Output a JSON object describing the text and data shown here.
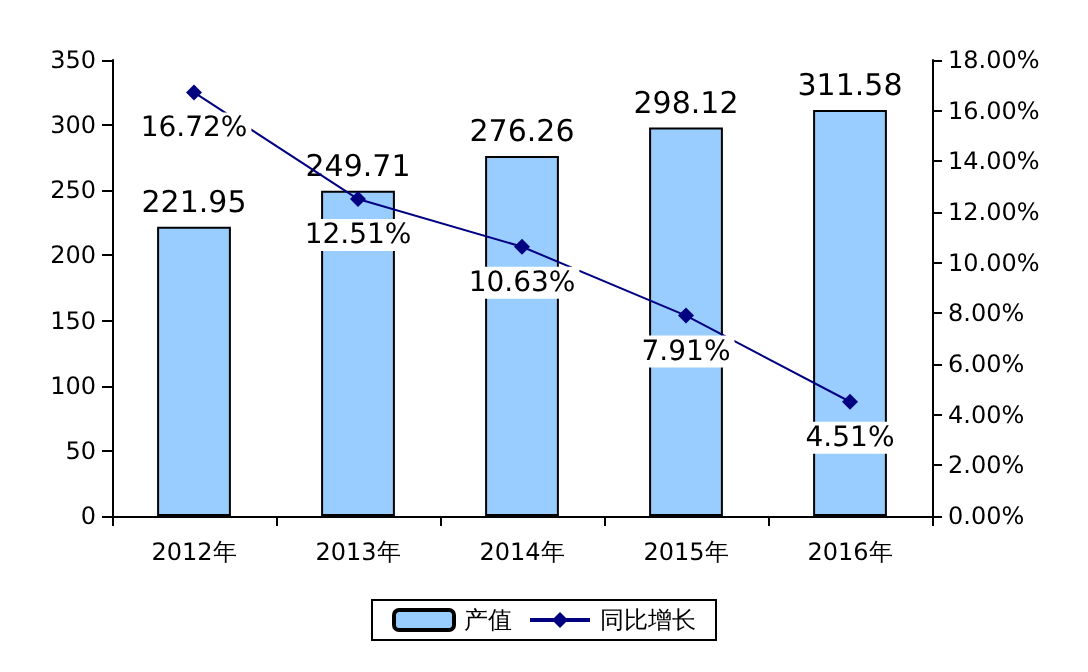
{
  "chart_data": {
    "type": "bar",
    "categories": [
      "2012年",
      "2013年",
      "2014年",
      "2015年",
      "2016年"
    ],
    "series": [
      {
        "name": "产值",
        "color": "#99ccff",
        "values": [
          221.95,
          249.71,
          276.26,
          298.12,
          311.58
        ]
      },
      {
        "name": "同比增长",
        "type": "line",
        "axis": "y2",
        "color": "#000080",
        "values": [
          16.72,
          12.51,
          10.63,
          7.91,
          4.51
        ],
        "value_labels": [
          "16.72%",
          "12.51%",
          "10.63%",
          "7.91%",
          "4.51%"
        ]
      }
    ],
    "data_labels": true,
    "ylim": [
      0,
      350
    ],
    "yticks": [
      0,
      50,
      100,
      150,
      200,
      250,
      300,
      350
    ],
    "y2lim": [
      0,
      18
    ],
    "y2ticks": [
      {
        "value": 0,
        "label": "0.00%"
      },
      {
        "value": 2,
        "label": "2.00%"
      },
      {
        "value": 4,
        "label": "4.00%"
      },
      {
        "value": 6,
        "label": "6.00%"
      },
      {
        "value": 8,
        "label": "8.00%"
      },
      {
        "value": 10,
        "label": "10.00%"
      },
      {
        "value": 12,
        "label": "12.00%"
      },
      {
        "value": 14,
        "label": "14.00%"
      },
      {
        "value": 16,
        "label": "16.00%"
      },
      {
        "value": 18,
        "label": "18.00%"
      }
    ],
    "marker": "diamond",
    "line_style": "solid",
    "grid": false,
    "legend": "bottom"
  }
}
